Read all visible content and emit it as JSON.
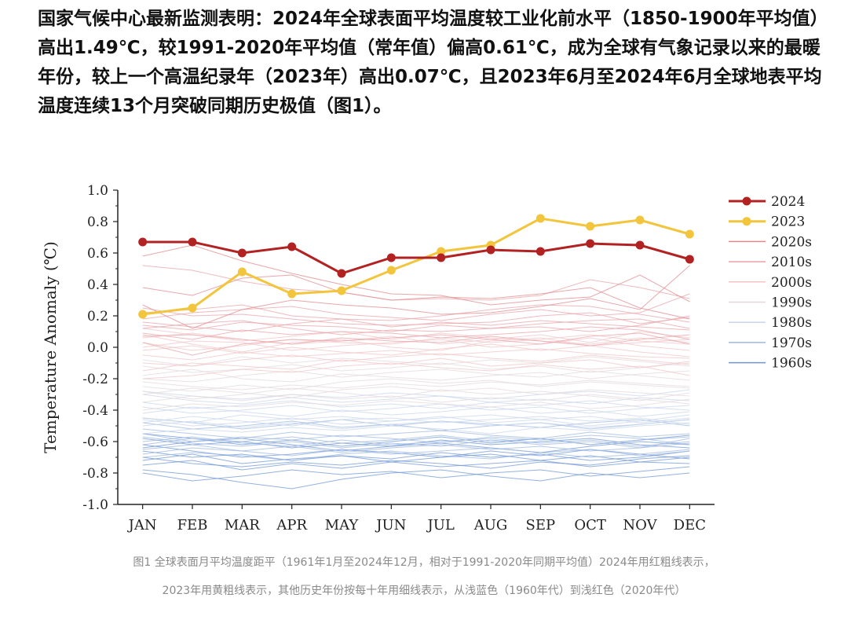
{
  "article": {
    "paragraph": "国家气候中心最新监测表明：2024年全球表面平均温度较工业化前水平（1850-1900年平均值）高出1.49℃，较1991-2020年平均值（常年值）偏高0.61℃，成为全球有气象记录以来的最暖年份，较上一个高温纪录年（2023年）高出0.07℃，且2023年6月至2024年6月全球地表平均温度连续13个月突破同期历史极值（图1）。"
  },
  "caption": {
    "line1": "图1 全球表面月平均温度距平（1961年1月至2024年12月，相对于1991-2020年同期平均值）2024年用红粗线表示，",
    "line2": "2023年用黄粗线表示，其他历史年份按每十年用细线表示，从浅蓝色（1960年代）到浅红色（2020年代）"
  },
  "chart_data": {
    "type": "line",
    "title": "",
    "xlabel": "",
    "ylabel": "Temperature Anomaly (℃)",
    "ylim": [
      -1.0,
      1.0
    ],
    "yticks": [
      "1.0",
      "0.8",
      "0.6",
      "0.4",
      "0.2",
      "0.0",
      "-0.2",
      "-0.4",
      "-0.6",
      "-0.8",
      "-1.0"
    ],
    "categories": [
      "JAN",
      "FEB",
      "MAR",
      "APR",
      "MAY",
      "JUN",
      "JUL",
      "AUG",
      "SEP",
      "OCT",
      "NOV",
      "DEC"
    ],
    "grid": false,
    "legend_position": "right",
    "series": [
      {
        "name": "2024",
        "color": "#b22222",
        "values": [
          0.67,
          0.67,
          0.6,
          0.64,
          0.47,
          0.57,
          0.57,
          0.62,
          0.61,
          0.66,
          0.65,
          0.56
        ]
      },
      {
        "name": "2023",
        "color": "#f2c53d",
        "values": [
          0.21,
          0.25,
          0.48,
          0.34,
          0.36,
          0.49,
          0.61,
          0.65,
          0.82,
          0.77,
          0.81,
          0.72
        ]
      }
    ],
    "decades": [
      {
        "name": "2020s",
        "color": "#e08a8f",
        "years": [
          [
            0.58,
            0.65,
            0.55,
            0.47,
            0.4,
            0.34,
            0.33,
            0.27,
            0.3,
            0.32,
            0.46,
            0.29
          ],
          [
            0.38,
            0.33,
            0.44,
            0.46,
            0.35,
            0.3,
            0.32,
            0.31,
            0.34,
            0.38,
            0.25,
            0.18
          ],
          [
            0.27,
            0.12,
            0.24,
            0.3,
            0.27,
            0.25,
            0.21,
            0.22,
            0.26,
            0.31,
            0.24,
            0.52
          ]
        ]
      },
      {
        "name": "2010s",
        "color": "#e9a3a8",
        "years": [
          [
            0.52,
            0.49,
            0.42,
            0.37,
            0.35,
            0.3,
            0.31,
            0.3,
            0.33,
            0.43,
            0.38,
            0.31
          ],
          [
            0.22,
            0.24,
            0.27,
            0.2,
            0.18,
            0.17,
            0.2,
            0.24,
            0.27,
            0.26,
            0.21,
            0.16
          ],
          [
            0.14,
            0.11,
            0.16,
            0.14,
            0.13,
            0.1,
            0.14,
            0.12,
            0.15,
            0.17,
            0.18,
            0.12
          ],
          [
            0.09,
            0.05,
            0.11,
            0.08,
            0.1,
            0.09,
            0.06,
            0.08,
            0.1,
            0.13,
            0.11,
            0.05
          ],
          [
            0.18,
            0.22,
            0.24,
            0.26,
            0.21,
            0.19,
            0.17,
            0.21,
            0.24,
            0.2,
            0.22,
            0.34
          ],
          [
            0.25,
            0.2,
            0.21,
            0.18,
            0.15,
            0.14,
            0.15,
            0.16,
            0.2,
            0.22,
            0.15,
            0.19
          ],
          [
            0.12,
            0.15,
            0.17,
            0.12,
            0.08,
            0.11,
            0.1,
            0.12,
            0.13,
            0.1,
            0.14,
            0.2
          ],
          [
            0.03,
            -0.05,
            0.02,
            0.05,
            0.04,
            0.06,
            0.08,
            0.05,
            0.02,
            0.07,
            0.09,
            0.02
          ],
          [
            0.16,
            0.13,
            0.1,
            0.15,
            0.18,
            0.13,
            0.16,
            0.14,
            0.17,
            0.15,
            0.13,
            0.11
          ],
          [
            0.07,
            0.08,
            0.05,
            0.02,
            0.06,
            0.04,
            0.03,
            0.07,
            0.04,
            0.01,
            0.05,
            0.08
          ]
        ]
      },
      {
        "name": "2000s",
        "color": "#f2c4c7",
        "years": [
          [
            0.03,
            -0.02,
            0.01,
            0.05,
            0.03,
            0.02,
            0.06,
            0.03,
            0.05,
            0.08,
            0.04,
            0.02
          ],
          [
            -0.05,
            -0.08,
            -0.03,
            -0.06,
            -0.04,
            -0.02,
            -0.05,
            -0.03,
            -0.01,
            -0.04,
            -0.06,
            -0.07
          ],
          [
            0.06,
            0.09,
            0.05,
            0.02,
            0.04,
            0.07,
            0.02,
            0.05,
            0.08,
            0.03,
            0.1,
            0.06
          ],
          [
            -0.1,
            -0.12,
            -0.08,
            -0.05,
            -0.09,
            -0.06,
            -0.04,
            -0.07,
            -0.09,
            -0.05,
            -0.08,
            -0.11
          ],
          [
            0.12,
            0.08,
            0.04,
            0.07,
            0.1,
            0.05,
            0.09,
            0.06,
            0.04,
            0.02,
            0.06,
            0.03
          ],
          [
            -0.02,
            0.01,
            -0.04,
            0.0,
            -0.03,
            -0.05,
            -0.01,
            0.02,
            -0.02,
            0.01,
            -0.03,
            -0.06
          ],
          [
            -0.15,
            -0.1,
            -0.12,
            -0.14,
            -0.08,
            -0.11,
            -0.07,
            -0.12,
            -0.1,
            -0.08,
            -0.13,
            -0.09
          ],
          [
            0.0,
            0.04,
            0.03,
            -0.02,
            0.01,
            0.03,
            0.05,
            0.0,
            0.02,
            0.06,
            0.01,
            -0.02
          ],
          [
            -0.2,
            -0.18,
            -0.14,
            -0.16,
            -0.12,
            -0.1,
            -0.13,
            -0.15,
            -0.11,
            -0.14,
            -0.12,
            -0.18
          ],
          [
            0.08,
            0.02,
            -0.03,
            0.03,
            0.05,
            0.0,
            -0.02,
            0.04,
            0.06,
            0.01,
            0.03,
            0.05
          ]
        ]
      },
      {
        "name": "1990s",
        "color": "#e3d8dc",
        "years": [
          [
            -0.2,
            -0.22,
            -0.18,
            -0.15,
            -0.19,
            -0.16,
            -0.14,
            -0.17,
            -0.19,
            -0.15,
            -0.18,
            -0.21
          ],
          [
            -0.25,
            -0.28,
            -0.24,
            -0.27,
            -0.22,
            -0.2,
            -0.23,
            -0.21,
            -0.25,
            -0.22,
            -0.24,
            -0.26
          ],
          [
            -0.3,
            -0.26,
            -0.29,
            -0.32,
            -0.27,
            -0.25,
            -0.28,
            -0.26,
            -0.3,
            -0.27,
            -0.29,
            -0.31
          ],
          [
            -0.12,
            -0.16,
            -0.14,
            -0.11,
            -0.15,
            -0.13,
            -0.1,
            -0.14,
            -0.12,
            -0.16,
            -0.13,
            -0.1
          ],
          [
            -0.35,
            -0.31,
            -0.34,
            -0.3,
            -0.33,
            -0.31,
            -0.35,
            -0.32,
            -0.34,
            -0.3,
            -0.33,
            -0.36
          ],
          [
            -0.18,
            -0.14,
            -0.2,
            -0.22,
            -0.17,
            -0.19,
            -0.21,
            -0.18,
            -0.16,
            -0.2,
            -0.17,
            -0.15
          ],
          [
            -0.28,
            -0.33,
            -0.3,
            -0.26,
            -0.29,
            -0.32,
            -0.27,
            -0.3,
            -0.28,
            -0.31,
            -0.34,
            -0.29
          ],
          [
            -0.08,
            -0.12,
            -0.06,
            -0.1,
            -0.07,
            -0.09,
            -0.11,
            -0.08,
            -0.1,
            -0.06,
            -0.09,
            -0.12
          ],
          [
            -0.4,
            -0.36,
            -0.38,
            -0.35,
            -0.37,
            -0.34,
            -0.36,
            -0.38,
            -0.35,
            -0.39,
            -0.37,
            -0.33
          ],
          [
            -0.22,
            -0.25,
            -0.27,
            -0.24,
            -0.26,
            -0.23,
            -0.25,
            -0.22,
            -0.24,
            -0.21,
            -0.23,
            -0.25
          ]
        ]
      },
      {
        "name": "1980s",
        "color": "#c8d6ec",
        "years": [
          [
            -0.38,
            -0.42,
            -0.4,
            -0.37,
            -0.41,
            -0.39,
            -0.36,
            -0.4,
            -0.38,
            -0.42,
            -0.39,
            -0.37
          ],
          [
            -0.45,
            -0.48,
            -0.43,
            -0.46,
            -0.44,
            -0.47,
            -0.45,
            -0.43,
            -0.46,
            -0.44,
            -0.48,
            -0.45
          ],
          [
            -0.3,
            -0.34,
            -0.36,
            -0.32,
            -0.35,
            -0.33,
            -0.31,
            -0.35,
            -0.33,
            -0.36,
            -0.32,
            -0.34
          ],
          [
            -0.5,
            -0.47,
            -0.51,
            -0.48,
            -0.52,
            -0.49,
            -0.47,
            -0.5,
            -0.48,
            -0.51,
            -0.49,
            -0.46
          ],
          [
            -0.42,
            -0.38,
            -0.41,
            -0.44,
            -0.4,
            -0.43,
            -0.41,
            -0.38,
            -0.42,
            -0.4,
            -0.44,
            -0.41
          ],
          [
            -0.55,
            -0.52,
            -0.54,
            -0.51,
            -0.53,
            -0.5,
            -0.52,
            -0.55,
            -0.51,
            -0.53,
            -0.5,
            -0.48
          ],
          [
            -0.35,
            -0.39,
            -0.37,
            -0.34,
            -0.38,
            -0.36,
            -0.39,
            -0.35,
            -0.37,
            -0.34,
            -0.38,
            -0.4
          ],
          [
            -0.48,
            -0.44,
            -0.47,
            -0.5,
            -0.46,
            -0.45,
            -0.48,
            -0.46,
            -0.44,
            -0.47,
            -0.45,
            -0.49
          ],
          [
            -0.28,
            -0.31,
            -0.33,
            -0.3,
            -0.32,
            -0.29,
            -0.31,
            -0.33,
            -0.3,
            -0.28,
            -0.31,
            -0.27
          ],
          [
            -0.46,
            -0.5,
            -0.48,
            -0.45,
            -0.49,
            -0.47,
            -0.44,
            -0.48,
            -0.46,
            -0.5,
            -0.47,
            -0.43
          ]
        ]
      },
      {
        "name": "1970s",
        "color": "#9db8e2",
        "years": [
          [
            -0.52,
            -0.55,
            -0.58,
            -0.54,
            -0.57,
            -0.55,
            -0.53,
            -0.56,
            -0.58,
            -0.54,
            -0.57,
            -0.55
          ],
          [
            -0.6,
            -0.57,
            -0.61,
            -0.63,
            -0.59,
            -0.62,
            -0.6,
            -0.58,
            -0.61,
            -0.59,
            -0.63,
            -0.6
          ],
          [
            -0.48,
            -0.52,
            -0.5,
            -0.47,
            -0.51,
            -0.49,
            -0.53,
            -0.5,
            -0.48,
            -0.52,
            -0.49,
            -0.46
          ],
          [
            -0.65,
            -0.62,
            -0.66,
            -0.63,
            -0.67,
            -0.64,
            -0.62,
            -0.65,
            -0.63,
            -0.66,
            -0.64,
            -0.61
          ],
          [
            -0.55,
            -0.6,
            -0.57,
            -0.59,
            -0.56,
            -0.58,
            -0.61,
            -0.57,
            -0.59,
            -0.56,
            -0.58,
            -0.62
          ],
          [
            -0.7,
            -0.67,
            -0.69,
            -0.72,
            -0.68,
            -0.66,
            -0.69,
            -0.71,
            -0.67,
            -0.7,
            -0.68,
            -0.65
          ],
          [
            -0.45,
            -0.48,
            -0.52,
            -0.49,
            -0.46,
            -0.5,
            -0.47,
            -0.49,
            -0.51,
            -0.48,
            -0.46,
            -0.5
          ],
          [
            -0.62,
            -0.58,
            -0.6,
            -0.57,
            -0.61,
            -0.59,
            -0.56,
            -0.6,
            -0.58,
            -0.62,
            -0.59,
            -0.57
          ],
          [
            -0.57,
            -0.61,
            -0.63,
            -0.6,
            -0.64,
            -0.61,
            -0.63,
            -0.59,
            -0.62,
            -0.6,
            -0.64,
            -0.58
          ],
          [
            -0.68,
            -0.64,
            -0.66,
            -0.69,
            -0.65,
            -0.68,
            -0.66,
            -0.64,
            -0.67,
            -0.65,
            -0.69,
            -0.66
          ]
        ]
      },
      {
        "name": "1960s",
        "color": "#6f97d6",
        "years": [
          [
            -0.66,
            -0.7,
            -0.68,
            -0.72,
            -0.69,
            -0.71,
            -0.67,
            -0.7,
            -0.68,
            -0.72,
            -0.7,
            -0.66
          ],
          [
            -0.75,
            -0.72,
            -0.78,
            -0.74,
            -0.77,
            -0.73,
            -0.76,
            -0.74,
            -0.72,
            -0.76,
            -0.73,
            -0.7
          ],
          [
            -0.58,
            -0.62,
            -0.6,
            -0.64,
            -0.61,
            -0.63,
            -0.59,
            -0.62,
            -0.6,
            -0.58,
            -0.62,
            -0.64
          ],
          [
            -0.8,
            -0.85,
            -0.82,
            -0.78,
            -0.81,
            -0.79,
            -0.83,
            -0.8,
            -0.78,
            -0.82,
            -0.79,
            -0.76
          ],
          [
            -0.7,
            -0.74,
            -0.76,
            -0.73,
            -0.75,
            -0.72,
            -0.74,
            -0.77,
            -0.73,
            -0.75,
            -0.71,
            -0.69
          ],
          [
            -0.62,
            -0.66,
            -0.7,
            -0.68,
            -0.65,
            -0.67,
            -0.7,
            -0.66,
            -0.69,
            -0.65,
            -0.68,
            -0.71
          ],
          [
            -0.78,
            -0.81,
            -0.86,
            -0.9,
            -0.84,
            -0.8,
            -0.78,
            -0.82,
            -0.85,
            -0.8,
            -0.83,
            -0.8
          ],
          [
            -0.55,
            -0.58,
            -0.62,
            -0.59,
            -0.63,
            -0.6,
            -0.57,
            -0.61,
            -0.58,
            -0.62,
            -0.59,
            -0.56
          ],
          [
            -0.72,
            -0.68,
            -0.74,
            -0.71,
            -0.69,
            -0.73,
            -0.7,
            -0.68,
            -0.72,
            -0.69,
            -0.73,
            -0.74
          ],
          [
            -0.64,
            -0.6,
            -0.58,
            -0.62,
            -0.66,
            -0.63,
            -0.61,
            -0.64,
            -0.67,
            -0.63,
            -0.6,
            -0.62
          ]
        ]
      }
    ]
  }
}
